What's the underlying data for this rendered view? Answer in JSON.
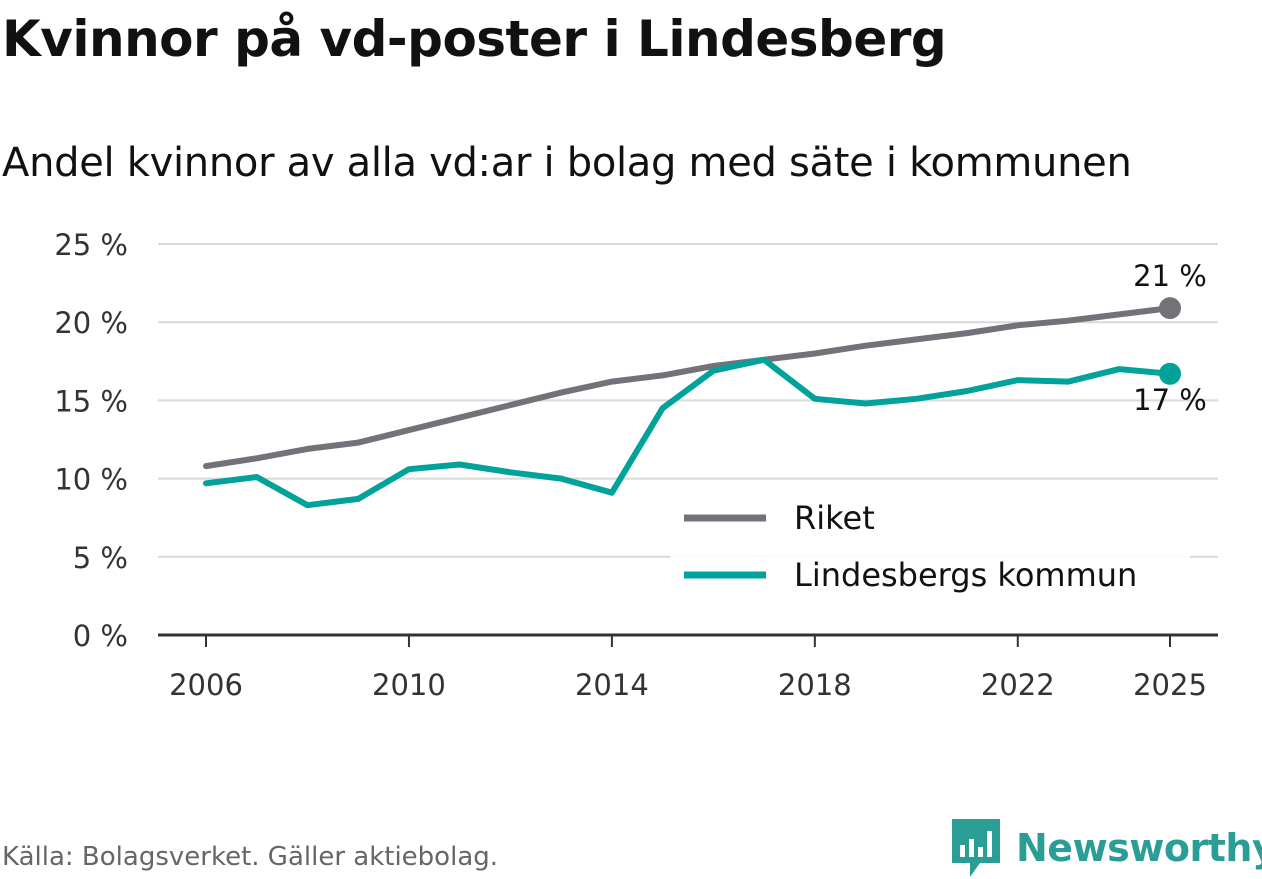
{
  "header": {
    "title": "Kvinnor på vd-poster i Lindesberg",
    "subtitle": "Andel kvinnor av alla vd:ar i bolag med säte i kommunen"
  },
  "footer": {
    "source": "Källa: Bolagsverket. Gäller aktiebolag.",
    "brand": "Newsworthy"
  },
  "colors": {
    "riket": "#737278",
    "lindesberg": "#00a29a",
    "grid": "#d9d9d9",
    "axis": "#333333",
    "brand": "#2a9d96"
  },
  "chart_data": {
    "type": "line",
    "title": "Kvinnor på vd-poster i Lindesberg",
    "subtitle": "Andel kvinnor av alla vd:ar i bolag med säte i kommunen",
    "x": [
      2006,
      2007,
      2008,
      2009,
      2010,
      2011,
      2012,
      2013,
      2014,
      2015,
      2016,
      2017,
      2018,
      2019,
      2020,
      2021,
      2022,
      2023,
      2024,
      2025
    ],
    "series": [
      {
        "name": "Riket",
        "color": "#737278",
        "values": [
          10.8,
          11.3,
          11.9,
          12.3,
          13.1,
          13.9,
          14.7,
          15.5,
          16.2,
          16.6,
          17.2,
          17.6,
          18.0,
          18.5,
          18.9,
          19.3,
          19.8,
          20.1,
          20.5,
          20.9
        ],
        "end_label": "21 %"
      },
      {
        "name": "Lindesbergs kommun",
        "color": "#00a29a",
        "values": [
          9.7,
          10.1,
          8.3,
          8.7,
          10.6,
          10.9,
          10.4,
          10.0,
          9.1,
          14.5,
          16.9,
          17.6,
          15.1,
          14.8,
          15.1,
          15.6,
          16.3,
          16.2,
          17.0,
          16.7
        ],
        "end_label": "17 %"
      }
    ],
    "y_ticks": [
      0,
      5,
      10,
      15,
      20,
      25
    ],
    "y_tick_labels": [
      "0 %",
      "5 %",
      "10 %",
      "15 %",
      "20 %",
      "25 %"
    ],
    "x_ticks": [
      2006,
      2010,
      2014,
      2018,
      2022,
      2025
    ],
    "x_tick_labels": [
      "2006",
      "2010",
      "2014",
      "2018",
      "2022",
      "2025"
    ],
    "xlim": [
      2006,
      2025
    ],
    "ylim": [
      0,
      25
    ],
    "xlabel": "",
    "ylabel": "",
    "grid": true,
    "legend_position": "bottom-right"
  }
}
